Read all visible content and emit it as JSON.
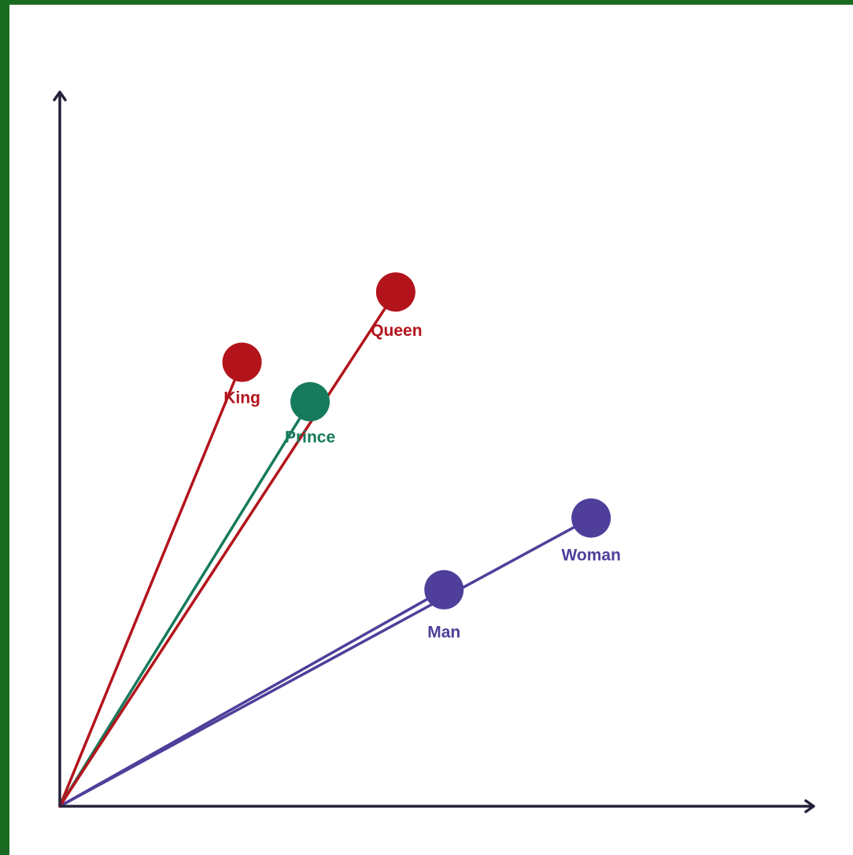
{
  "colors": {
    "frame": "#1a6b22",
    "axis": "#24223a",
    "royal": "#b3141c",
    "prince": "#167a5c",
    "common": "#4f3f9a"
  },
  "points": [
    {
      "id": "king",
      "label": "King",
      "color_key": "royal",
      "x": 24.9,
      "y": 60.7
    },
    {
      "id": "queen",
      "label": "Queen",
      "color_key": "royal",
      "x": 45.9,
      "y": 70.3
    },
    {
      "id": "prince",
      "label": "Prince",
      "color_key": "prince",
      "x": 34.2,
      "y": 55.3
    },
    {
      "id": "man",
      "label": "Man",
      "color_key": "common",
      "x": 52.5,
      "y": 29.6
    },
    {
      "id": "woman",
      "label": "Woman",
      "color_key": "common",
      "x": 72.6,
      "y": 39.4
    }
  ]
}
